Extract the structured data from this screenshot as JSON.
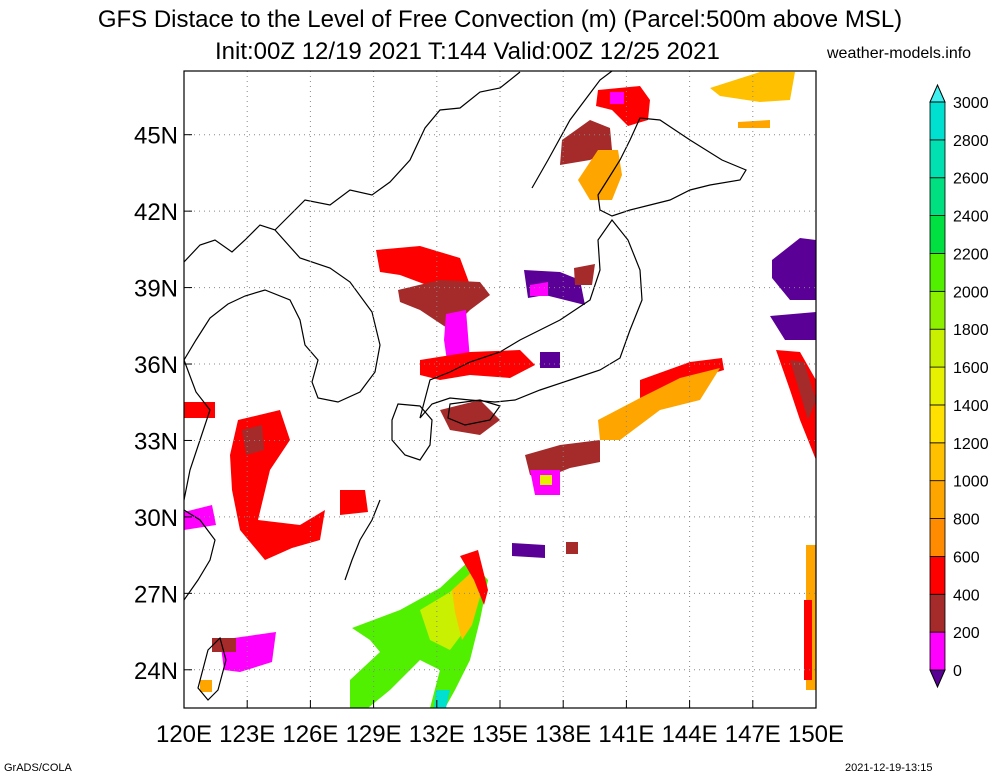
{
  "title": {
    "line1": "GFS Distace to the Level of Free Convection (m) (Parcel:500m above MSL)",
    "line2": "Init:00Z 12/19 2021 T:144 Valid:00Z 12/25 2021",
    "site": "weather-models.info"
  },
  "footer": {
    "left": "GrADS/COLA",
    "right": "2021-12-19-13:15"
  },
  "map": {
    "lon_range": [
      120,
      150
    ],
    "lat_range": [
      22.5,
      47.5
    ],
    "lon_ticks": [
      "120E",
      "123E",
      "126E",
      "129E",
      "132E",
      "135E",
      "138E",
      "141E",
      "144E",
      "147E",
      "150E"
    ],
    "lat_ticks": [
      "45N",
      "42N",
      "39N",
      "36N",
      "33N",
      "30N",
      "27N",
      "24N"
    ],
    "grid": true
  },
  "colorbar": {
    "labels": [
      "0",
      "200",
      "400",
      "600",
      "800",
      "1000",
      "1200",
      "1400",
      "1600",
      "1800",
      "2000",
      "2200",
      "2400",
      "2600",
      "2800",
      "3000"
    ],
    "colors": [
      "#5a0096",
      "#ff00ff",
      "#a52a2a",
      "#ff0000",
      "#ff8c00",
      "#ffa500",
      "#ffc000",
      "#ffe000",
      "#e6f000",
      "#c8f000",
      "#8cf000",
      "#50f000",
      "#00e040",
      "#00e080",
      "#00e0b0",
      "#00e0d0",
      "#40f0f0"
    ],
    "extend": "both"
  }
}
